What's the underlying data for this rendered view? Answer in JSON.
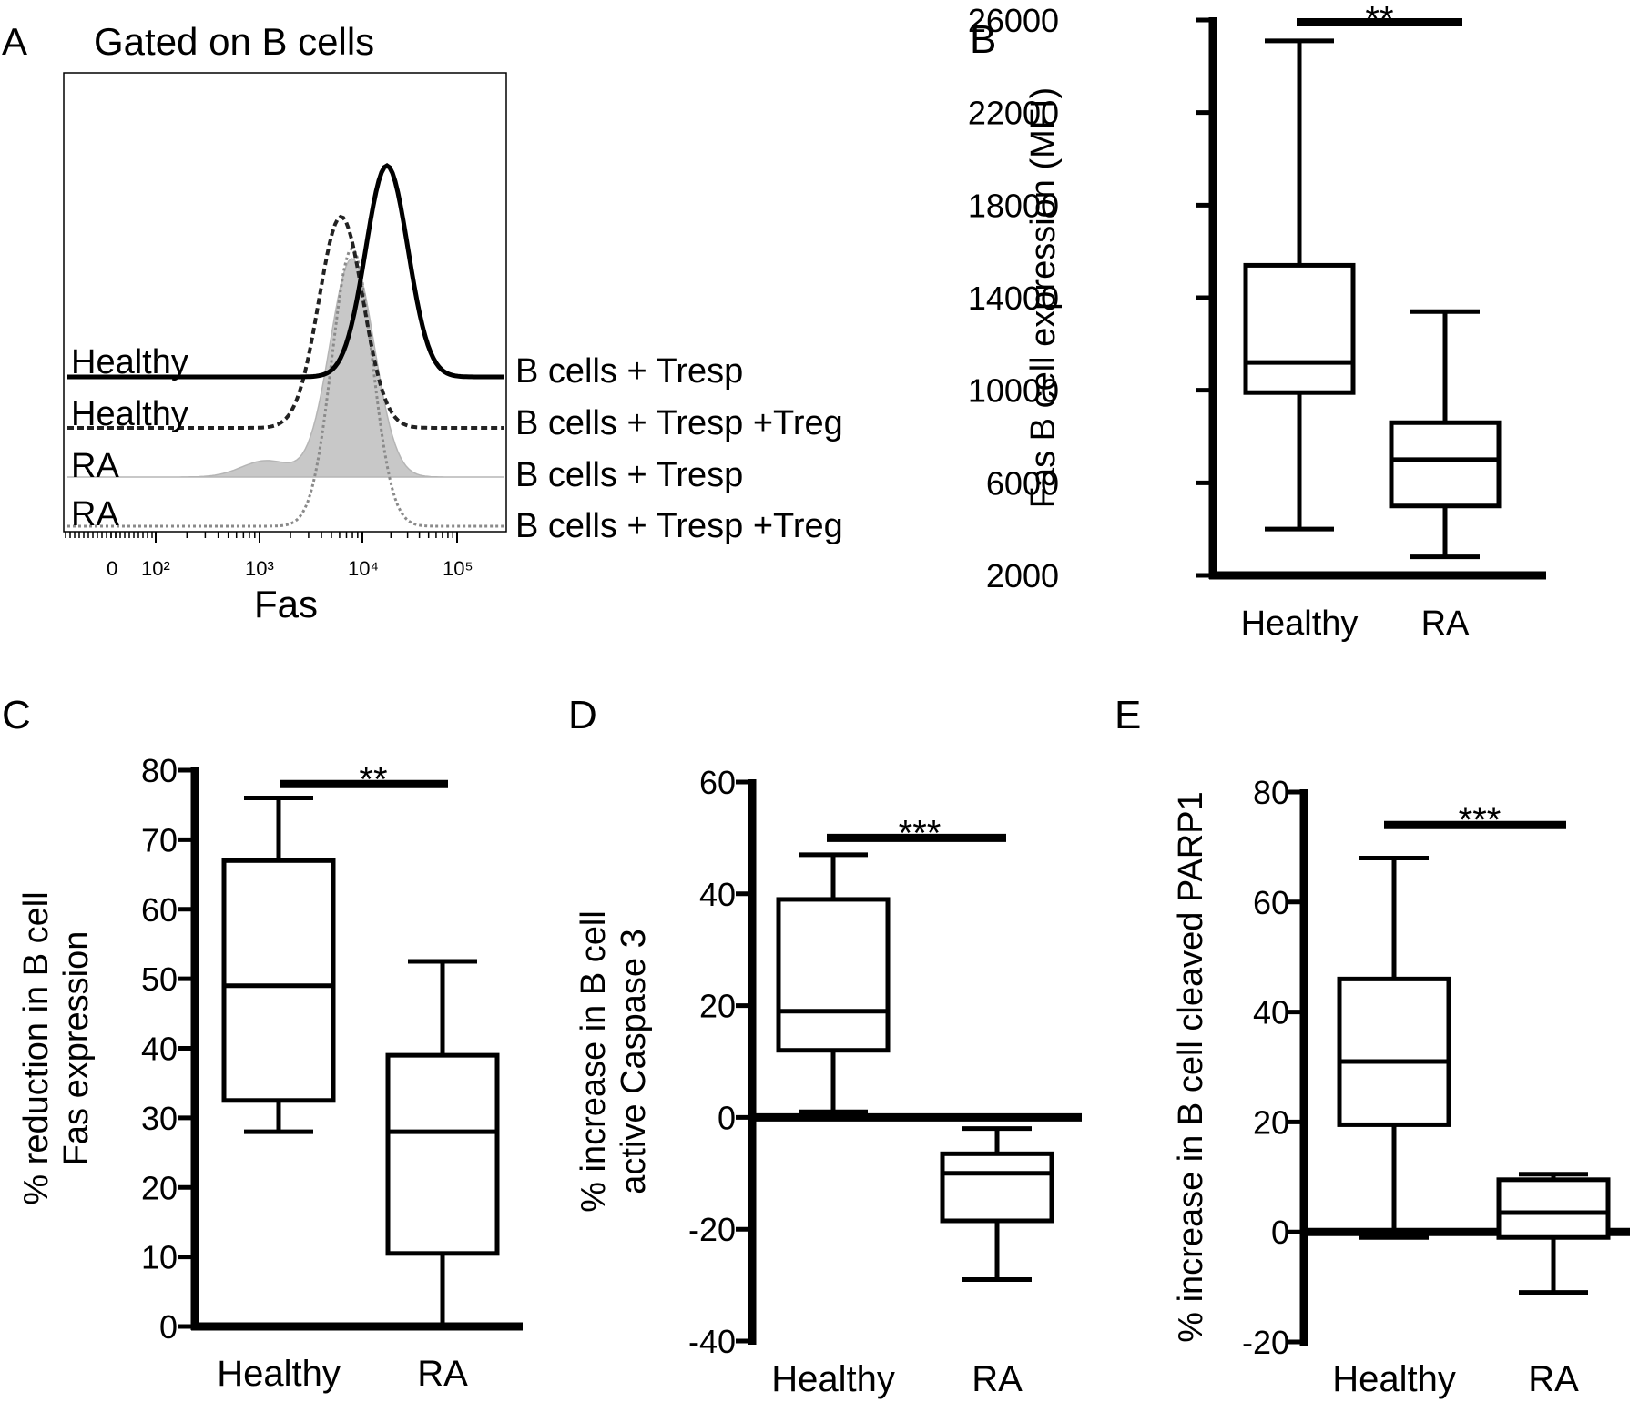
{
  "chart_data": [
    {
      "panel": "A",
      "type": "histogram",
      "title": "Gated on B cells",
      "xlabel": "Fas",
      "x_ticks": [
        "0",
        "10²",
        "10³",
        "10⁴",
        "10⁵"
      ],
      "x_scale": "log",
      "rows": [
        {
          "left": "Healthy",
          "right": "B cells + Tresp",
          "style": "solid-thick",
          "peak_x": 20000
        },
        {
          "left": "Healthy",
          "right": "B cells + Tresp +Treg",
          "style": "dashed",
          "peak_x": 7000
        },
        {
          "left": "RA",
          "right": "B cells + Tresp",
          "style": "filled-gray",
          "peak_x": 9000
        },
        {
          "left": "RA",
          "right": "B cells + Tresp +Treg",
          "style": "dotted-gray",
          "peak_x": 9000
        }
      ]
    },
    {
      "panel": "B",
      "type": "boxplot",
      "ylabel": "Fas B cell expression (MFI)",
      "ylim": [
        2000,
        26000
      ],
      "yticks": [
        2000,
        6000,
        10000,
        14000,
        18000,
        22000,
        26000
      ],
      "categories": [
        "Healthy",
        "RA"
      ],
      "boxes": [
        {
          "min": 4000,
          "q1": 9900,
          "median": 11200,
          "q3": 15400,
          "max": 25100
        },
        {
          "min": 2800,
          "q1": 5000,
          "median": 7000,
          "q3": 8600,
          "max": 13400
        }
      ],
      "significance": "**",
      "sig_y": 25900
    },
    {
      "panel": "C",
      "type": "boxplot",
      "ylabel_lines": [
        "% reduction in B cell",
        "Fas expression"
      ],
      "ylim": [
        0,
        80
      ],
      "yticks": [
        0,
        10,
        20,
        30,
        40,
        50,
        60,
        70,
        80
      ],
      "categories": [
        "Healthy",
        "RA"
      ],
      "boxes": [
        {
          "min": 28,
          "q1": 32.5,
          "median": 49,
          "q3": 67,
          "max": 76
        },
        {
          "min": 0,
          "q1": 10.5,
          "median": 28,
          "q3": 39,
          "max": 52.5
        }
      ],
      "significance": "**",
      "sig_y": 78
    },
    {
      "panel": "D",
      "type": "boxplot",
      "ylabel_lines": [
        "% increase in B cell",
        "active Caspase 3"
      ],
      "ylim": [
        -40,
        60
      ],
      "yticks": [
        -40,
        -20,
        0,
        20,
        40,
        60
      ],
      "categories": [
        "Healthy",
        "RA"
      ],
      "boxes": [
        {
          "min": 1,
          "q1": 12,
          "median": 19,
          "q3": 39,
          "max": 47
        },
        {
          "min": -29,
          "q1": -18.5,
          "median": -10,
          "q3": -6.5,
          "max": -2
        }
      ],
      "significance": "***",
      "sig_y": 50
    },
    {
      "panel": "E",
      "type": "boxplot",
      "ylabel_lines": [
        "% increase in B cell cleaved PARP1"
      ],
      "ylim": [
        -20,
        80
      ],
      "yticks": [
        -20,
        0,
        20,
        40,
        60,
        80
      ],
      "categories": [
        "Healthy",
        "RA"
      ],
      "boxes": [
        {
          "min": -1,
          "q1": 19.5,
          "median": 31,
          "q3": 46,
          "max": 68
        },
        {
          "min": -11,
          "q1": -1,
          "median": 3.5,
          "q3": 9.5,
          "max": 10.5
        }
      ],
      "significance": "***",
      "sig_y": 74
    }
  ]
}
